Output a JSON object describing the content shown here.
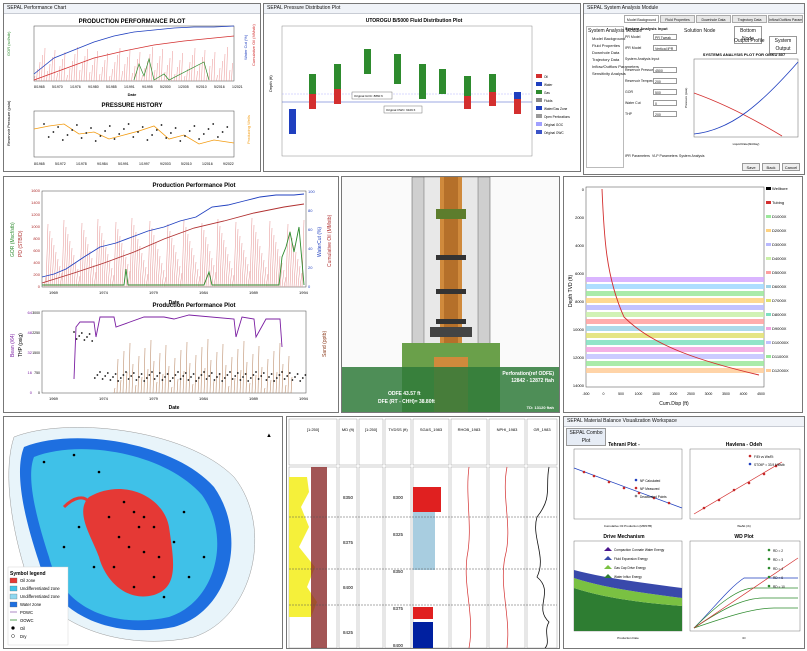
{
  "panel1": {
    "window_title": "SEPAL Performance Chart",
    "plot_title": "PRODUCTION PERFORMANCE PLOT",
    "plot2_title": "PRESSURE HISTORY",
    "xlabel": "Date",
    "ylabel_left": "GOR (scf/stb)",
    "ylabel_right": "Water Cut (%)",
    "ylabel_right2": "Cumulative Oil (MMstb)",
    "ylabel_p": "Reservoir Pressure (psia)",
    "ylabel_p_right": "Producing Wells",
    "dates": [
      "8/1965",
      "5/1970",
      "1/1976",
      "9/1980",
      "5/1985",
      "1/1991",
      "9/1995",
      "5/2000",
      "1/2005",
      "9/2010",
      "5/2016",
      "1/2021"
    ],
    "dates_p": [
      "8/1965",
      "5/1972",
      "1/1978",
      "9/1984",
      "5/1991",
      "1/1997",
      "9/2003",
      "5/2010",
      "1/2016",
      "9/2022"
    ]
  },
  "panel2": {
    "window_title": "SEPAL Pressure Distribution Plot",
    "plot_title": "UTOROGU B/5000 Fluid Distribution Plot",
    "legend": [
      "Oil",
      "Water",
      "Gas",
      "Fluids",
      "Water/Gas Zone",
      "Open Perforations",
      "Original GOC",
      "Original OWC"
    ],
    "annot_goc": "Original GOC: 8860 ft",
    "annot_owc": "Original OWC: 9109 ft",
    "ylabel": "Depth (ft)"
  },
  "panel3": {
    "window_title": "SEPAL System Analysis Module",
    "tabs": [
      "Model Background",
      "Fluid Properties",
      "Downhole Data",
      "Trajectory Data",
      "Inflow/Outflow Parameters"
    ],
    "tree_root": "System Analysis Module",
    "tree_items": [
      "Model Background",
      "Fluid Properties",
      "Downhole Data",
      "Trajectory Data",
      "Inflow/Outflow Parameters",
      "Sensitivity Analysis"
    ],
    "section": "System Analysis Input",
    "fields": [
      {
        "label": "PR Model",
        "value": "PR Tweak"
      },
      {
        "label": "IPR Model",
        "value": "Vertical IPR"
      },
      {
        "label": "System Analysis Input",
        "value": ""
      },
      {
        "label": "Reservoir Pressure",
        "value": "4500"
      },
      {
        "label": "Reservoir Temperature",
        "value": "200"
      },
      {
        "label": "GOR",
        "value": "500"
      },
      {
        "label": "Water Cut",
        "value": "0"
      },
      {
        "label": "THP",
        "value": "200"
      }
    ],
    "node_label": "Solution Node",
    "node_value": "Bottom Node",
    "plot_type_label": "Output Profile",
    "plot_type_value": "System Output",
    "plot_title": "SYSTEMS ANALYSIS PLOT FOR OMKU 807",
    "xlabel": "Liquid Rate(bbl/day)",
    "ylabel": "Pressure (psia)",
    "buttons": [
      "Save",
      "Back",
      "Cancel"
    ],
    "status": [
      "IPR Parameters",
      "VLP Parameters",
      "System Analysis"
    ]
  },
  "panel4": {
    "plot_title": "Production Performance Plot",
    "plot2_title": "Production Performance Plot",
    "xlabel": "Date",
    "ylabel_left": "GOR (Mscf/stb)",
    "ylabel_left2": "PD (STB/D)",
    "ylabel_right": "WaterCut (%)",
    "ylabel_right2": "Cumulative Oil (MMstb)",
    "years": [
      "1969",
      "1974",
      "1979",
      "1984",
      "1989",
      "1994"
    ],
    "yticks_left": [
      "0",
      "200",
      "400",
      "600",
      "800",
      "1000",
      "1200",
      "1400",
      "1600"
    ],
    "yticks_right": [
      "0",
      "20",
      "40",
      "60",
      "80",
      "100"
    ],
    "ylabel_bean": "Bean (/64)",
    "ylabel_thp": "THP (psig)",
    "ylabel_sand": "Sand (pptb)",
    "yticks_bean": [
      "0",
      "16",
      "32",
      "48",
      "64"
    ],
    "yticks_thp": [
      "0",
      "750",
      "1500",
      "2250",
      "3000"
    ]
  },
  "panel5": {
    "perf_label": "Perforation(ref ODFE)",
    "perf_interval": "12842 - 12872 ftah",
    "odfe": "ODFE 43.57 ft",
    "dfe": "DFE (RT - CHH)= 38.80ft",
    "td": "TD: 13120 ftah"
  },
  "panel6": {
    "ylabel": "Depth TVD (ft)",
    "xlabel": "Cum.Disp (ft)",
    "yticks": [
      "0",
      "2000",
      "4000",
      "6000",
      "8000",
      "10000",
      "12000",
      "14000"
    ],
    "xticks": [
      "-500",
      "0",
      "500",
      "1000",
      "1500",
      "2000",
      "2500",
      "3000",
      "3500",
      "4000",
      "4500"
    ],
    "legend": [
      "Wellbore",
      "Tubing",
      "D1000X",
      "D2000X",
      "D3000X",
      "D4000X",
      "D5000X",
      "D6000X",
      "D7000X",
      "D8000X",
      "D9000X",
      "D10000X",
      "D11000X",
      "D12000X"
    ]
  },
  "panel7": {
    "legend_title": "Symbol legend",
    "legend": [
      "Oil zone",
      "Undifferentiated zone",
      "Undifferentiated zone",
      "Water zone",
      "POWC",
      "OOWC",
      "Oil",
      "Dry"
    ]
  },
  "panel8": {
    "headers": [
      "[1:250]",
      "MD (ft)",
      "[1:250]",
      "TVDSS (ft)",
      "SGAS_1983",
      "RHOB_1983",
      "NPHI_1983",
      "GR_1983"
    ],
    "md_ticks": [
      "8350",
      "8375",
      "8400",
      "8425"
    ],
    "tvd_ticks": [
      "8300",
      "8325",
      "8350",
      "8375",
      "8400"
    ]
  },
  "panel9": {
    "window_title": "SEPAL Material Balance Visualization Workspace",
    "tab": "SEPAL Combo Plot",
    "tehrani_title": "Tehrani Plot -",
    "havlena_title": "Havlena - Odeh",
    "tehrani_legend": [
      "NP Calculated",
      "NP Measured",
      "Deactivated Points"
    ],
    "havlena_legend": [
      "F/Et vs We/Et",
      "STOIIP = 33.9 MMstb"
    ],
    "drive_title": "Drive Mechanism",
    "drive_legend": [
      "Compaction Connate Water Energy",
      "Fluid Expansion Energy",
      "Gas Cap Drive Energy",
      "Water Influx Energy"
    ],
    "drive_xlabel": "Production Date",
    "wd_title": "WD Plot",
    "wd_legend": [
      "RD = 2",
      "RD = 3",
      "RD = 4",
      "RD = 6",
      "RD = 10"
    ],
    "wd_xlabel": "tD",
    "tehrani_xlabel": "Cumulative Oil Production (MMSTB)",
    "havlena_xlabel": "We/Et (rb)"
  },
  "colors": {
    "red": "#d32f2f",
    "blue": "#1f3fbf",
    "green": "#2e8b2e",
    "brown": "#8b3a1a"
  }
}
